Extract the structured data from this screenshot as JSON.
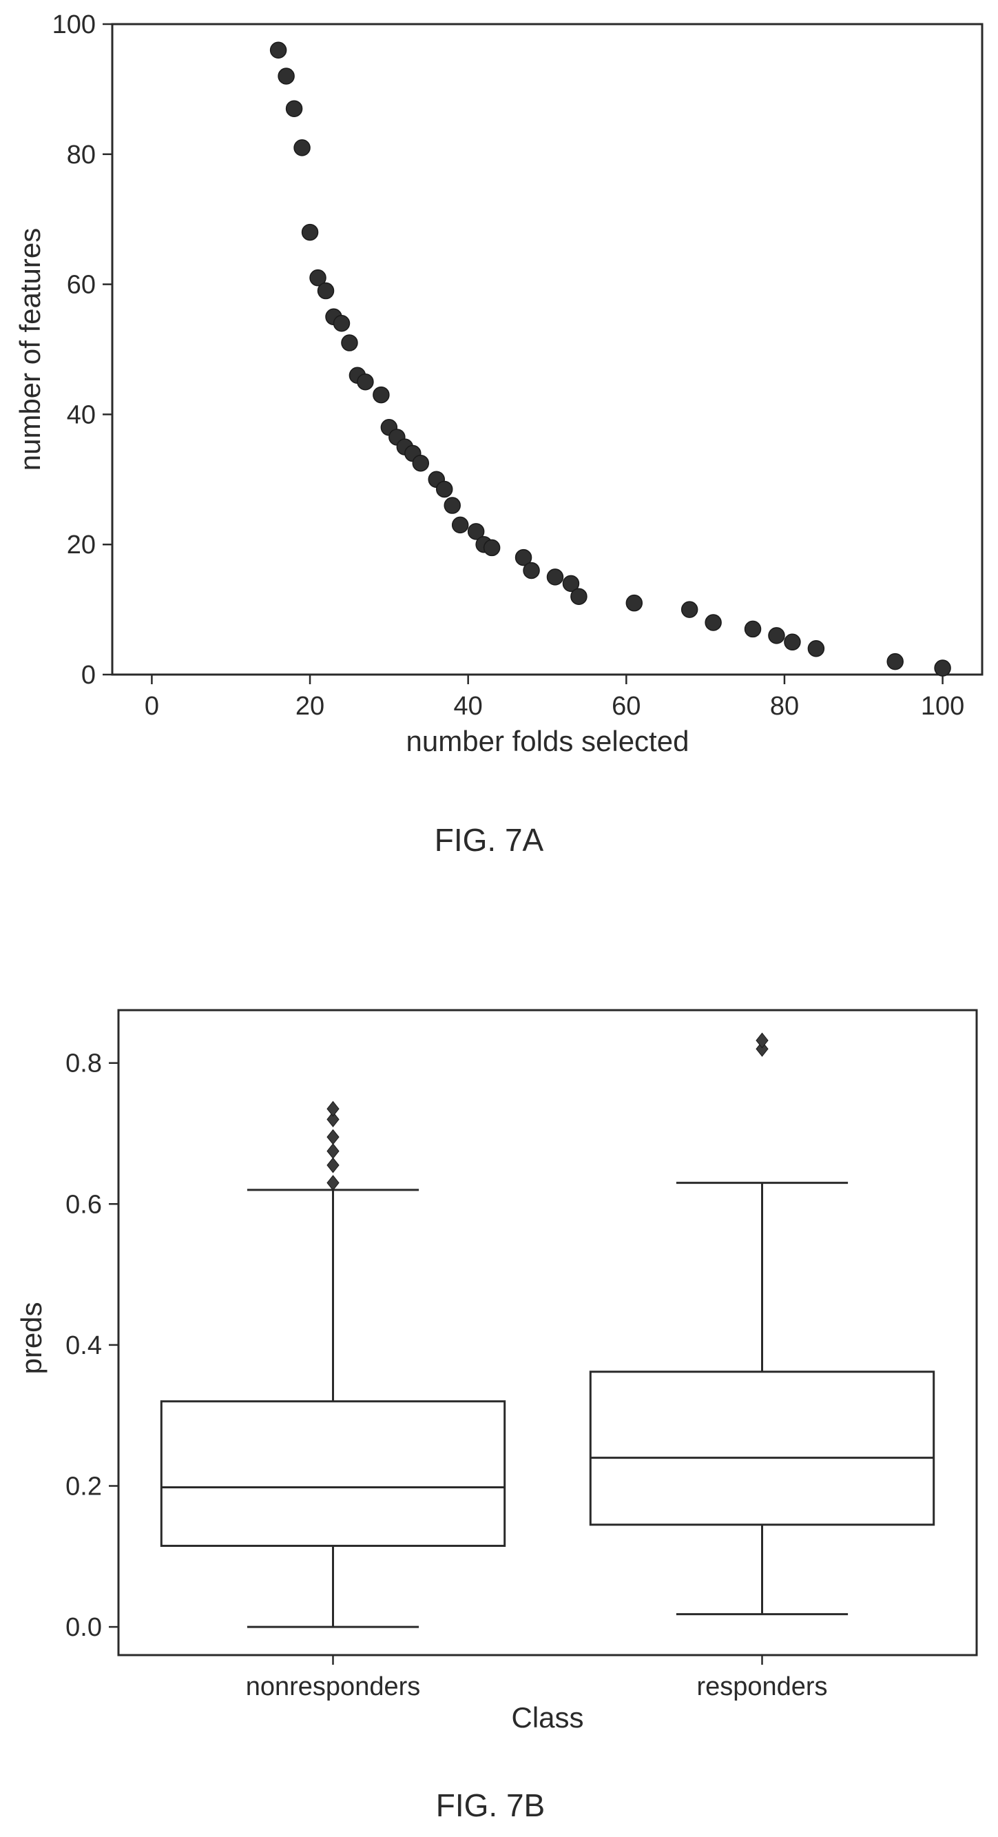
{
  "chart_data": [
    {
      "type": "scatter",
      "xlabel": "number folds selected",
      "ylabel": "number of features",
      "xlim": [
        -5,
        105
      ],
      "ylim": [
        0,
        100
      ],
      "xticks": [
        "0",
        "20",
        "40",
        "60",
        "80",
        "100"
      ],
      "yticks": [
        "0",
        "20",
        "40",
        "60",
        "80",
        "100"
      ],
      "grid": false,
      "points": [
        {
          "x": 16,
          "y": 96
        },
        {
          "x": 17,
          "y": 92
        },
        {
          "x": 18,
          "y": 87
        },
        {
          "x": 19,
          "y": 81
        },
        {
          "x": 20,
          "y": 68
        },
        {
          "x": 21,
          "y": 61
        },
        {
          "x": 22,
          "y": 59
        },
        {
          "x": 23,
          "y": 55
        },
        {
          "x": 24,
          "y": 54
        },
        {
          "x": 25,
          "y": 51
        },
        {
          "x": 26,
          "y": 46
        },
        {
          "x": 27,
          "y": 45
        },
        {
          "x": 29,
          "y": 43
        },
        {
          "x": 30,
          "y": 38
        },
        {
          "x": 31,
          "y": 36.5
        },
        {
          "x": 32,
          "y": 35
        },
        {
          "x": 33,
          "y": 34
        },
        {
          "x": 34,
          "y": 32.5
        },
        {
          "x": 36,
          "y": 30
        },
        {
          "x": 37,
          "y": 28.5
        },
        {
          "x": 38,
          "y": 26
        },
        {
          "x": 39,
          "y": 23
        },
        {
          "x": 41,
          "y": 22
        },
        {
          "x": 42,
          "y": 20
        },
        {
          "x": 43,
          "y": 19.5
        },
        {
          "x": 47,
          "y": 18
        },
        {
          "x": 48,
          "y": 16
        },
        {
          "x": 51,
          "y": 15
        },
        {
          "x": 53,
          "y": 14
        },
        {
          "x": 54,
          "y": 12
        },
        {
          "x": 61,
          "y": 11
        },
        {
          "x": 68,
          "y": 10
        },
        {
          "x": 71,
          "y": 8
        },
        {
          "x": 76,
          "y": 7
        },
        {
          "x": 79,
          "y": 6
        },
        {
          "x": 81,
          "y": 5
        },
        {
          "x": 84,
          "y": 4
        },
        {
          "x": 94,
          "y": 2
        },
        {
          "x": 100,
          "y": 1
        }
      ],
      "caption": "FIG. 7A"
    },
    {
      "type": "box",
      "xlabel": "Class",
      "ylabel": "preds",
      "categories": [
        "nonresponders",
        "responders"
      ],
      "ylim": [
        -0.04,
        0.875
      ],
      "yticks": [
        "0.0",
        "0.2",
        "0.4",
        "0.6",
        "0.8"
      ],
      "grid": false,
      "boxes": [
        {
          "category": "nonresponders",
          "whislo": 0.0,
          "q1": 0.115,
          "median": 0.198,
          "q3": 0.32,
          "whishi": 0.62,
          "fliers": [
            0.63,
            0.655,
            0.675,
            0.695,
            0.72,
            0.735
          ]
        },
        {
          "category": "responders",
          "whislo": 0.018,
          "q1": 0.145,
          "median": 0.24,
          "q3": 0.362,
          "whishi": 0.63,
          "fliers": [
            0.82,
            0.832
          ]
        }
      ],
      "caption": "FIG. 7B"
    }
  ]
}
